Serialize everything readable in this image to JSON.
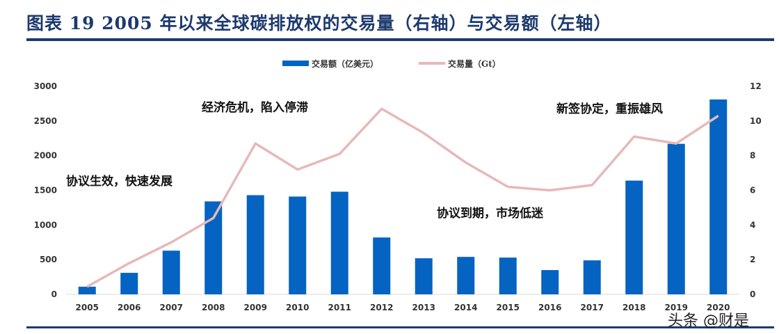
{
  "title": "图表 19   2005 年以来全球碳排放权的交易量（右轴）与交易额（左轴）",
  "watermark": "头条 @财是",
  "chart_data": {
    "type": "bar+line",
    "categories": [
      "2005",
      "2006",
      "2007",
      "2008",
      "2009",
      "2010",
      "2011",
      "2012",
      "2013",
      "2014",
      "2015",
      "2016",
      "2017",
      "2018",
      "2019",
      "2020"
    ],
    "series": [
      {
        "name": "交易额（亿美元）",
        "type": "bar",
        "axis": "left",
        "color": "#0563C1",
        "values": [
          110,
          310,
          630,
          1340,
          1430,
          1410,
          1480,
          820,
          520,
          540,
          530,
          350,
          490,
          1640,
          2170,
          2810
        ]
      },
      {
        "name": "交易量（Gt）",
        "type": "line",
        "axis": "right",
        "color": "#E6B9B8",
        "values": [
          0.44,
          1.8,
          3.0,
          4.4,
          8.7,
          7.2,
          8.1,
          10.7,
          9.3,
          7.6,
          6.2,
          6.0,
          6.3,
          9.1,
          8.7,
          10.3
        ]
      }
    ],
    "y_left": {
      "range": [
        0,
        3000
      ],
      "ticks": [
        "0",
        "500",
        "1000",
        "1500",
        "2000",
        "2500",
        "3000"
      ]
    },
    "y_right": {
      "range": [
        0,
        12
      ],
      "ticks": [
        "0",
        "2",
        "4",
        "6",
        "8",
        "10",
        "12"
      ]
    },
    "grid": false,
    "legend": "top-center",
    "annotations": [
      {
        "text": "协议生效，快速发展",
        "near": "2005-2007"
      },
      {
        "text": "经济危机，陷入停滞",
        "near": "2008-2010"
      },
      {
        "text": "协议到期，市场低迷",
        "near": "2013-2015"
      },
      {
        "text": "新签协定，重振雄风",
        "near": "2017-2019"
      }
    ]
  }
}
